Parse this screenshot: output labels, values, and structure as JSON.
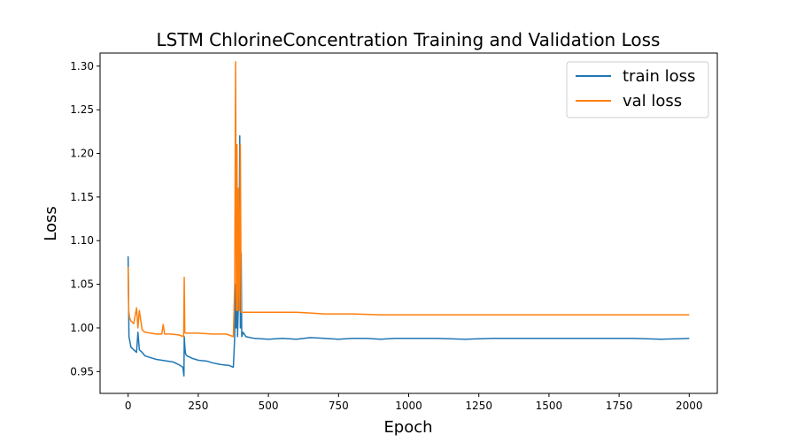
{
  "chart_data": {
    "type": "line",
    "title": "LSTM ChlorineConcentration Training and Validation Loss",
    "xlabel": "Epoch",
    "ylabel": "Loss",
    "xlim": [
      -100,
      2100
    ],
    "ylim": [
      0.925,
      1.315
    ],
    "x_ticks": [
      0,
      250,
      500,
      750,
      1000,
      1250,
      1500,
      1750,
      2000
    ],
    "y_ticks": [
      0.95,
      1.0,
      1.05,
      1.1,
      1.15,
      1.2,
      1.25,
      1.3
    ],
    "grid": false,
    "legend": {
      "position": "top-right",
      "entries": [
        "train loss",
        "val loss"
      ]
    },
    "series": [
      {
        "name": "train loss",
        "color": "#1f77b4",
        "x": [
          0,
          3,
          6,
          10,
          20,
          30,
          35,
          40,
          50,
          60,
          80,
          100,
          120,
          140,
          160,
          180,
          195,
          199,
          200,
          203,
          205,
          210,
          230,
          250,
          280,
          300,
          330,
          360,
          375,
          380,
          382,
          385,
          388,
          390,
          395,
          398,
          400,
          403,
          405,
          410,
          420,
          450,
          500,
          550,
          600,
          650,
          700,
          750,
          800,
          850,
          900,
          950,
          1000,
          1100,
          1200,
          1300,
          1400,
          1500,
          1600,
          1700,
          1800,
          1900,
          2000
        ],
        "y": [
          1.082,
          0.99,
          0.985,
          0.978,
          0.975,
          0.972,
          0.995,
          0.975,
          0.972,
          0.968,
          0.966,
          0.964,
          0.963,
          0.962,
          0.961,
          0.958,
          0.955,
          0.945,
          0.99,
          0.975,
          0.97,
          0.968,
          0.965,
          0.963,
          0.962,
          0.96,
          0.958,
          0.957,
          0.955,
          0.99,
          1.05,
          1.0,
          1.08,
          0.99,
          1.05,
          1.22,
          1.0,
          1.085,
          0.99,
          0.995,
          0.99,
          0.988,
          0.987,
          0.988,
          0.987,
          0.989,
          0.988,
          0.987,
          0.988,
          0.988,
          0.987,
          0.988,
          0.988,
          0.988,
          0.987,
          0.988,
          0.988,
          0.988,
          0.988,
          0.988,
          0.988,
          0.987,
          0.988
        ]
      },
      {
        "name": "val loss",
        "color": "#ff7f0e",
        "x": [
          0,
          2,
          5,
          10,
          20,
          30,
          35,
          40,
          50,
          60,
          80,
          100,
          120,
          125,
          130,
          150,
          180,
          198,
          200,
          202,
          205,
          210,
          250,
          300,
          350,
          375,
          380,
          383,
          386,
          388,
          390,
          393,
          396,
          400,
          403,
          406,
          410,
          450,
          500,
          550,
          600,
          650,
          700,
          750,
          800,
          900,
          1000,
          1200,
          1400,
          1600,
          1800,
          2000
        ],
        "y": [
          1.07,
          1.02,
          1.012,
          1.008,
          1.005,
          1.023,
          1.0,
          1.02,
          0.998,
          0.995,
          0.994,
          0.993,
          0.993,
          1.004,
          0.993,
          0.993,
          0.992,
          0.99,
          1.058,
          0.995,
          0.994,
          0.994,
          0.994,
          0.993,
          0.993,
          0.99,
          1.05,
          1.305,
          1.02,
          1.21,
          1.02,
          1.16,
          1.02,
          1.21,
          1.018,
          1.018,
          1.018,
          1.018,
          1.018,
          1.018,
          1.018,
          1.017,
          1.016,
          1.016,
          1.016,
          1.015,
          1.015,
          1.015,
          1.015,
          1.015,
          1.015,
          1.015
        ]
      }
    ]
  }
}
